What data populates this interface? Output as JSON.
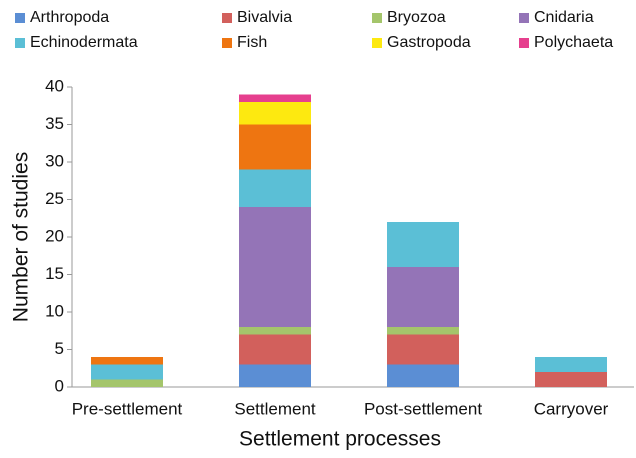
{
  "chart_data": {
    "type": "stacked_bar",
    "categories": [
      "Pre-settlement",
      "Settlement",
      "Post-settlement",
      "Carryover"
    ],
    "series": [
      {
        "name": "Arthropoda",
        "color": "#5b8ed4",
        "values": [
          0,
          3,
          3,
          0
        ]
      },
      {
        "name": "Bivalvia",
        "color": "#d2605c",
        "values": [
          0,
          4,
          4,
          2
        ]
      },
      {
        "name": "Bryozoa",
        "color": "#a4c56b",
        "values": [
          1,
          1,
          1,
          0
        ]
      },
      {
        "name": "Cnidaria",
        "color": "#9474b7",
        "values": [
          0,
          16,
          8,
          0
        ]
      },
      {
        "name": "Echinodermata",
        "color": "#5bbfd6",
        "values": [
          2,
          5,
          6,
          2
        ]
      },
      {
        "name": "Fish",
        "color": "#ee7511",
        "values": [
          1,
          6,
          0,
          0
        ]
      },
      {
        "name": "Gastropoda",
        "color": "#fde910",
        "values": [
          0,
          3,
          0,
          0
        ]
      },
      {
        "name": "Polychaeta",
        "color": "#e63f8e",
        "values": [
          0,
          1,
          0,
          0
        ]
      }
    ],
    "xlabel": "Settlement processes",
    "ylabel": "Number of studies",
    "ylim": [
      0,
      40
    ],
    "yticks": [
      0,
      5,
      10,
      15,
      20,
      25,
      30,
      35,
      40
    ],
    "legend": "top"
  }
}
